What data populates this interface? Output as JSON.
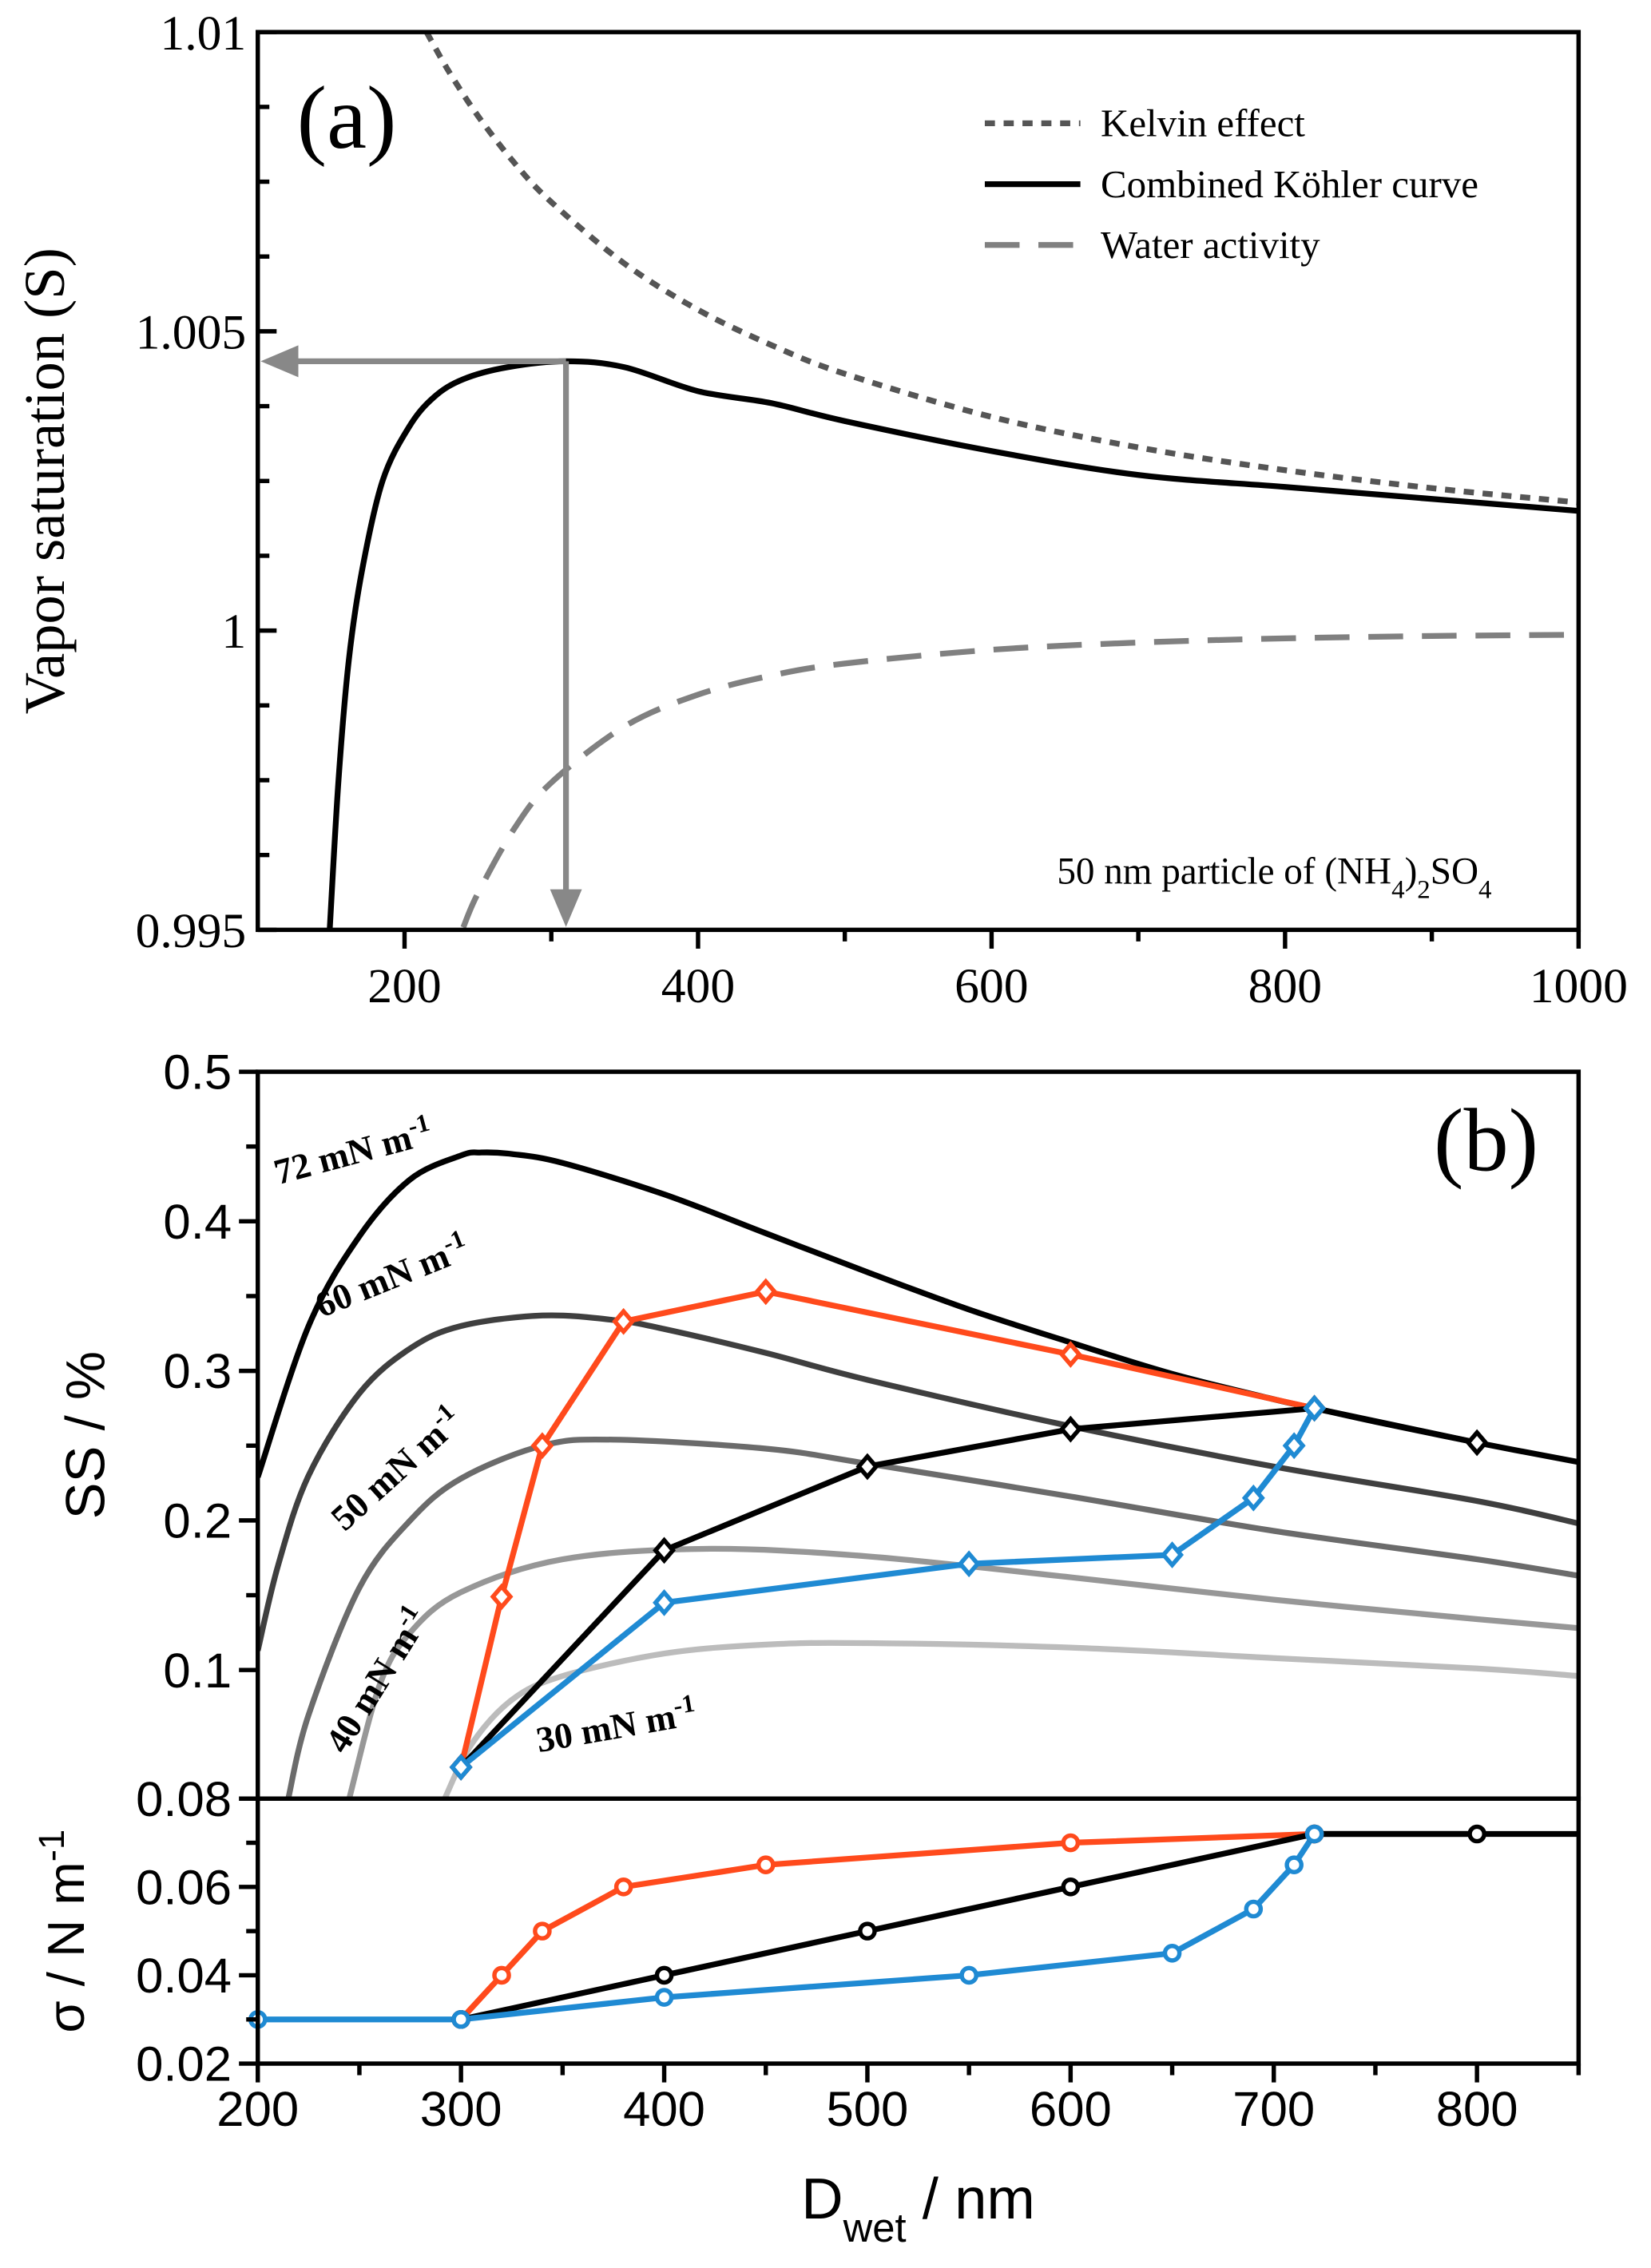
{
  "chart_data": [
    {
      "type": "line",
      "label": "(a)",
      "ylabel": "Vapor saturation (S)",
      "note": [
        "50 nm particle of (NH",
        "4",
        ")",
        "2",
        "SO",
        "4"
      ],
      "xlim": [
        100,
        1000
      ],
      "xticks": [
        200,
        400,
        600,
        800,
        1000
      ],
      "xminorticks": [
        300,
        500,
        700,
        900
      ],
      "ylim": [
        0.995,
        1.01
      ],
      "yticks": [
        0.995,
        1,
        1.005,
        1.01
      ],
      "yminorticks": [
        0.99625,
        0.9975,
        0.99875,
        1.00125,
        1.0025,
        1.00375,
        1.00625,
        1.0075,
        1.00875
      ],
      "legend": "upper right",
      "series": [
        {
          "name": "Kelvin effect",
          "color": "#555555",
          "dash": "dotted",
          "x": [
            215,
            230,
            250,
            275,
            300,
            350,
            400,
            450,
            500,
            600,
            700,
            800,
            900,
            1000
          ],
          "values": [
            1.01,
            1.00935,
            1.0086,
            1.00781,
            1.00716,
            1.00613,
            1.00536,
            1.00477,
            1.00429,
            1.00357,
            1.00306,
            1.00268,
            1.00238,
            1.00214
          ]
        },
        {
          "name": "Combined Köhler curve",
          "color": "#000000",
          "dash": "solid",
          "x": [
            149,
            155,
            162,
            171,
            185,
            203,
            220,
            240,
            270,
            310,
            350,
            400,
            450,
            500,
            600,
            700,
            800,
            900,
            1000
          ],
          "values": [
            0.995,
            0.9975,
            0.9995,
            1.001,
            1.0025,
            1.0034,
            1.0039,
            1.0042,
            1.0044,
            1.0045,
            1.0044,
            1.004,
            1.0038,
            1.0035,
            1.003,
            1.0026,
            1.0024,
            1.0022,
            1.002
          ]
        },
        {
          "name": "Water activity",
          "color": "#808080",
          "dash": "dashed",
          "x": [
            240,
            250,
            275,
            300,
            350,
            400,
            450,
            500,
            600,
            700,
            800,
            900,
            1000
          ],
          "values": [
            0.99504,
            0.99561,
            0.9967,
            0.99746,
            0.9984,
            0.99893,
            0.99925,
            0.99945,
            0.99968,
            0.9998,
            0.99987,
            0.99991,
            0.99993
          ]
        }
      ]
    },
    {
      "type": "line",
      "label": "(b)",
      "ylabel": "SS / %",
      "xlim": [
        200,
        850
      ],
      "ylim": [
        0.014,
        0.5
      ],
      "yticks": [
        0.1,
        0.2,
        0.3,
        0.4,
        0.5
      ],
      "yminorticks": [
        0.15,
        0.25,
        0.35,
        0.45
      ],
      "series": [
        {
          "label": [
            "72 mN m",
            "-1"
          ],
          "color": "#000000",
          "marker": "none",
          "x": [
            200,
            225,
            250,
            275,
            300,
            310,
            325,
            350,
            400,
            450,
            500,
            550,
            600,
            650,
            700,
            720,
            750,
            800,
            850
          ],
          "values": [
            0.229,
            0.33,
            0.39,
            0.428,
            0.444,
            0.446,
            0.445,
            0.439,
            0.418,
            0.392,
            0.366,
            0.341,
            0.319,
            0.298,
            0.281,
            0.275,
            0.266,
            0.252,
            0.239
          ]
        },
        {
          "label": [
            "60 mN m",
            "-1"
          ],
          "color": "#3f3f3f",
          "marker": "none",
          "x": [
            200,
            210,
            225,
            250,
            275,
            300,
            340,
            375,
            400,
            450,
            500,
            600,
            700,
            800,
            850
          ],
          "values": [
            0.113,
            0.17,
            0.23,
            0.285,
            0.315,
            0.33,
            0.337,
            0.334,
            0.328,
            0.312,
            0.294,
            0.263,
            0.236,
            0.213,
            0.198
          ]
        },
        {
          "label": [
            "50 mN m",
            "-1"
          ],
          "color": "#6b6b6b",
          "marker": "none",
          "x": [
            215,
            225,
            250,
            275,
            300,
            340,
            375,
            450,
            500,
            600,
            700,
            800,
            850
          ],
          "values": [
            0.014,
            0.07,
            0.155,
            0.2,
            0.228,
            0.25,
            0.254,
            0.248,
            0.238,
            0.216,
            0.193,
            0.174,
            0.163
          ]
        },
        {
          "label": [
            "40 mN m",
            "-1"
          ],
          "color": "#979797",
          "marker": "none",
          "x": [
            245,
            260,
            275,
            300,
            350,
            420,
            500,
            600,
            700,
            800,
            850
          ],
          "values": [
            0.014,
            0.09,
            0.125,
            0.152,
            0.174,
            0.181,
            0.176,
            0.162,
            0.147,
            0.134,
            0.128
          ]
        },
        {
          "label": [
            "30 mN m",
            "-1"
          ],
          "color": "#bcbcbc",
          "marker": "none",
          "x": [
            292,
            305,
            325,
            350,
            400,
            450,
            500,
            600,
            700,
            800,
            850
          ],
          "values": [
            0.014,
            0.05,
            0.08,
            0.096,
            0.111,
            0.117,
            0.118,
            0.115,
            0.108,
            0.101,
            0.096
          ]
        },
        {
          "color": "#ff4a1c",
          "marker": "diamond",
          "x": [
            300,
            320,
            340,
            380,
            450,
            600,
            720
          ],
          "values": [
            0.035,
            0.149,
            0.25,
            0.333,
            0.353,
            0.311,
            0.275
          ]
        },
        {
          "color": "#000000",
          "marker": "diamond",
          "x": [
            300,
            400,
            500,
            600,
            720,
            800
          ],
          "values": [
            0.035,
            0.18,
            0.236,
            0.261,
            0.275,
            0.252
          ]
        },
        {
          "color": "#1f8ad3",
          "marker": "diamond",
          "x": [
            300,
            400,
            550,
            650,
            690,
            710,
            720
          ],
          "values": [
            0.035,
            0.145,
            0.171,
            0.177,
            0.215,
            0.25,
            0.275
          ]
        }
      ]
    },
    {
      "type": "line",
      "ylabel": [
        "σ / N m",
        "-1"
      ],
      "xlabel": [
        "D",
        "wet",
        " / nm"
      ],
      "xlim": [
        200,
        850
      ],
      "xticks": [
        200,
        300,
        400,
        500,
        600,
        700,
        800
      ],
      "xminorticks": [
        250,
        350,
        450,
        550,
        650,
        750,
        850
      ],
      "ylim": [
        0.02,
        0.08
      ],
      "yticks": [
        0.02,
        0.04,
        0.06,
        0.08
      ],
      "yminorticks": [
        0.03,
        0.05,
        0.07
      ],
      "series": [
        {
          "color": "#000000",
          "marker": "none",
          "x": [
            720,
            850
          ],
          "values": [
            0.072,
            0.072
          ]
        },
        {
          "color": "#ff4a1c",
          "marker": "circle",
          "x": [
            300,
            320,
            340,
            380,
            450,
            600,
            720
          ],
          "values": [
            0.03,
            0.04,
            0.05,
            0.06,
            0.065,
            0.07,
            0.072
          ]
        },
        {
          "color": "#000000",
          "marker": "circle",
          "x": [
            300,
            400,
            500,
            600,
            720,
            800
          ],
          "values": [
            0.03,
            0.04,
            0.05,
            0.06,
            0.072,
            0.072
          ]
        },
        {
          "color": "#1f8ad3",
          "marker": "circle",
          "x": [
            200,
            300,
            400,
            550,
            650,
            690,
            710,
            720
          ],
          "values": [
            0.03,
            0.03,
            0.035,
            0.04,
            0.045,
            0.055,
            0.065,
            0.072
          ]
        }
      ]
    }
  ]
}
